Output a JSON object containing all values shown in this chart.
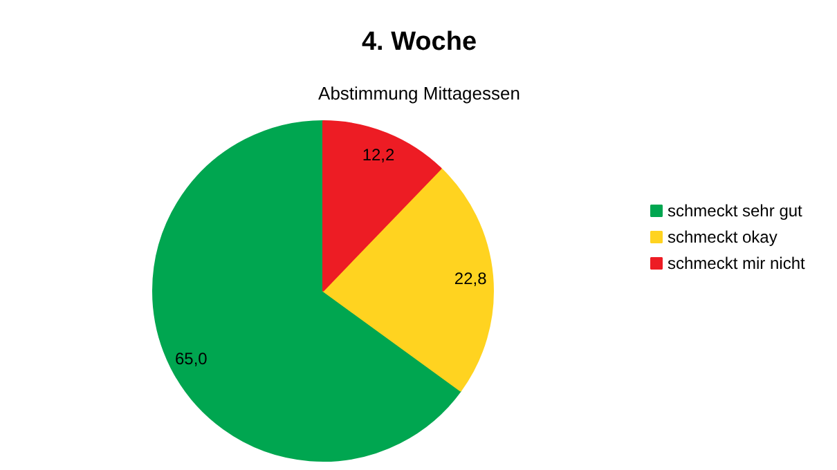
{
  "chart_data": {
    "type": "pie",
    "title": "4. Woche",
    "subtitle": "Abstimmung Mittagessen",
    "categories": [
      "schmeckt sehr gut",
      "schmeckt okay",
      "schmeckt mir nicht"
    ],
    "values": [
      65.0,
      22.8,
      12.2
    ],
    "colors": [
      "#00a650",
      "#ffd320",
      "#ed1c24"
    ],
    "value_labels": [
      "65,0",
      "22,8",
      "12,2"
    ],
    "legend": "right"
  }
}
